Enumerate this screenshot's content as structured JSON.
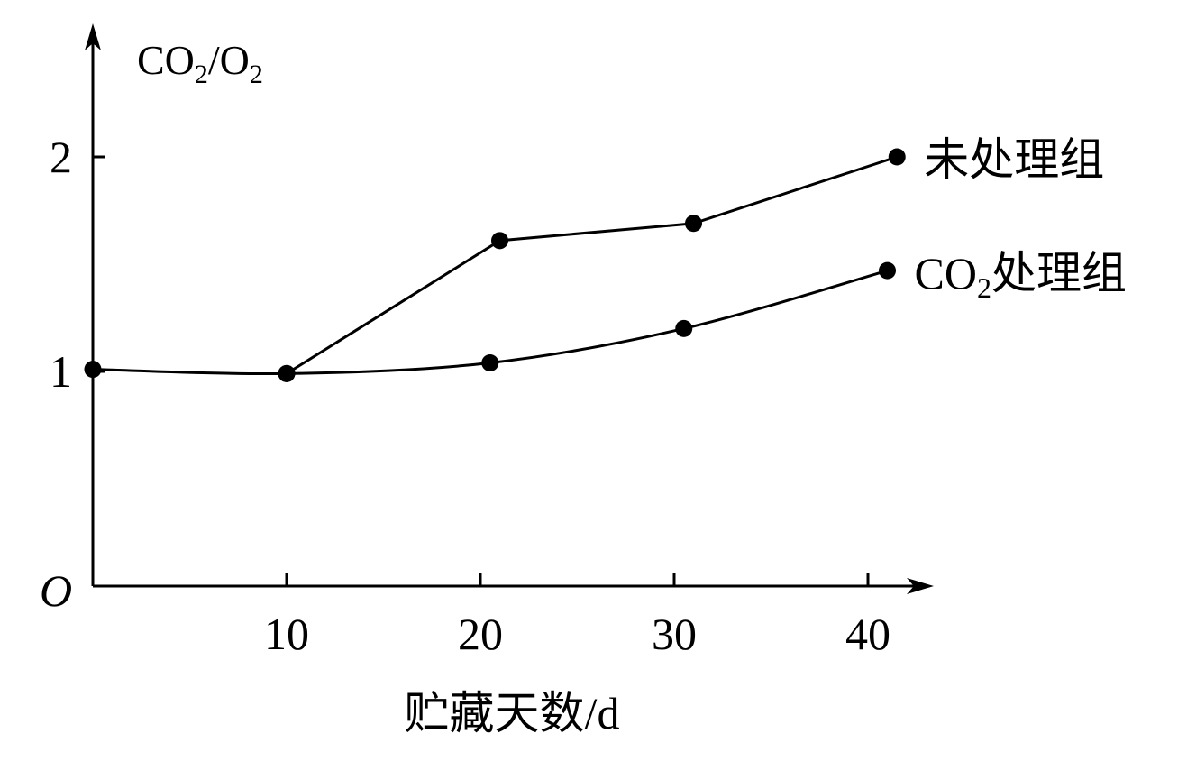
{
  "chart_data": {
    "type": "line",
    "origin_label": "O",
    "ylabel": {
      "main": "CO",
      "sub": "2",
      "sep": "/O",
      "sub2": "2"
    },
    "xlabel": "贮藏天数/d",
    "xlim": [
      0,
      43
    ],
    "ylim": [
      0,
      2.5
    ],
    "xticks": [
      10,
      20,
      30,
      40
    ],
    "yticks": [
      1,
      2
    ],
    "grid": false,
    "series": [
      {
        "name": "未处理组",
        "name_parts": {
          "pre": "",
          "sub": "",
          "post": "未处理组"
        },
        "smooth": false,
        "x": [
          10,
          21,
          31,
          41.5
        ],
        "y": [
          0.99,
          1.61,
          1.69,
          2.0
        ]
      },
      {
        "name": "CO2处理组",
        "name_parts": {
          "pre": "CO",
          "sub": "2",
          "post": "处理组"
        },
        "smooth": true,
        "x": [
          0,
          10,
          20.5,
          30.5,
          41
        ],
        "y": [
          1.01,
          0.99,
          1.04,
          1.2,
          1.47
        ]
      }
    ]
  }
}
